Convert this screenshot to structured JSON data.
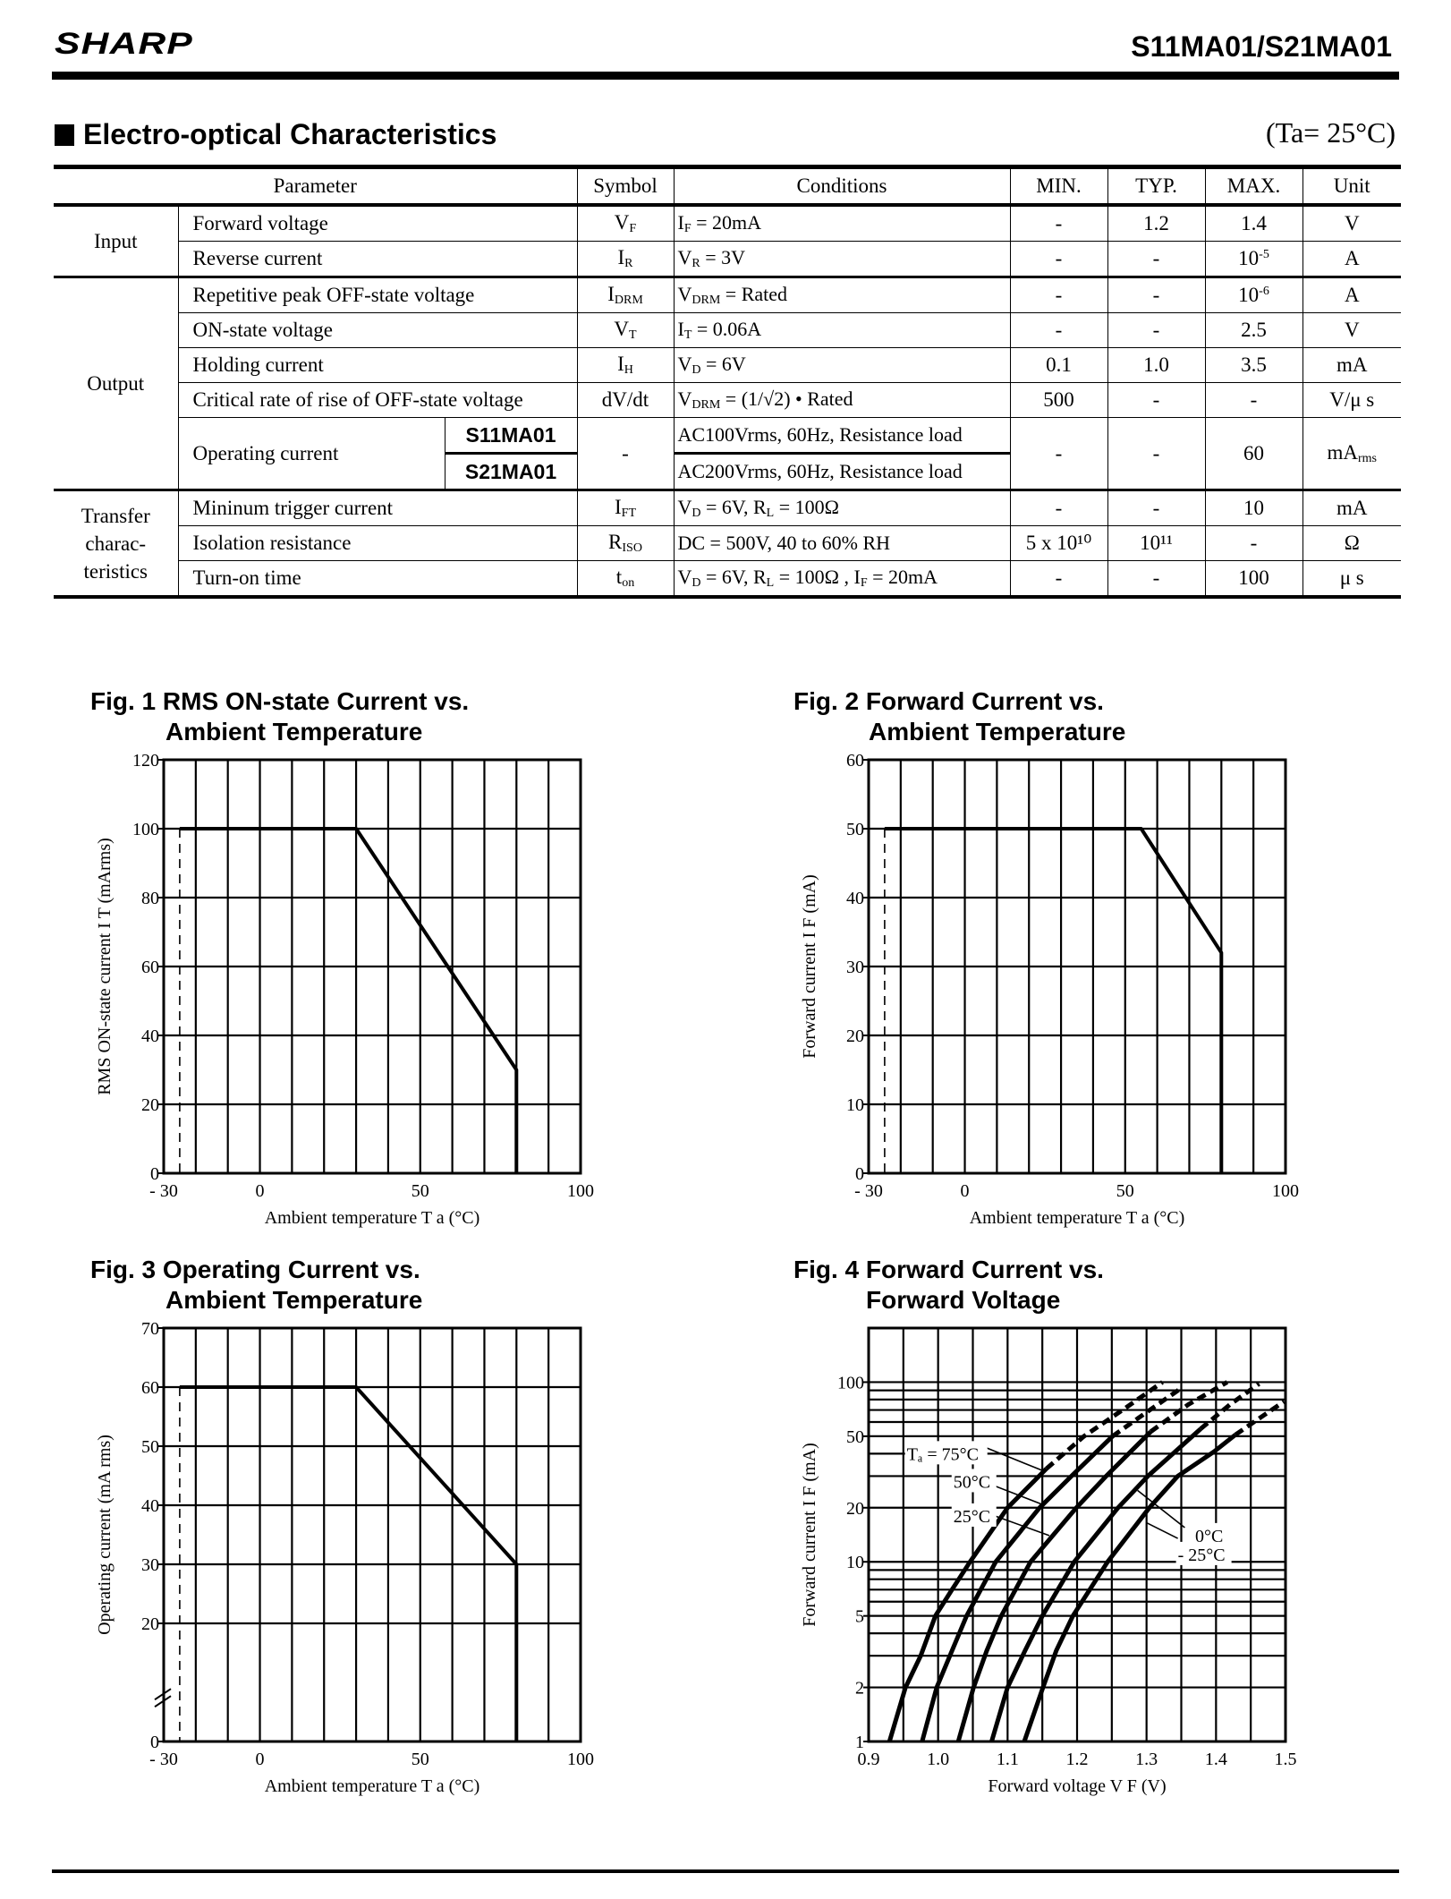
{
  "header": {
    "logo": "SHARP",
    "title": "S11MA01/S21MA01"
  },
  "section": {
    "title": "Electro-optical Characteristics",
    "condition": "(Ta= 25°C)"
  },
  "table": {
    "headers": [
      "Parameter",
      "Symbol",
      "Conditions",
      "MIN.",
      "TYP.",
      "MAX.",
      "Unit"
    ],
    "groups": [
      {
        "label": "Input",
        "rows": [
          {
            "param": "Forward voltage",
            "symbol": [
              {
                "t": "V"
              },
              {
                "sub": "F"
              }
            ],
            "conditions": [
              {
                "t": "I"
              },
              {
                "sub": "F"
              },
              {
                "t": " = 20mA"
              }
            ],
            "min": "-",
            "typ": "1.2",
            "max": [
              {
                "t": "1.4"
              }
            ],
            "unit": [
              {
                "t": "V"
              }
            ]
          },
          {
            "param": "Reverse current",
            "symbol": [
              {
                "t": "I"
              },
              {
                "sub": "R"
              }
            ],
            "conditions": [
              {
                "t": "V"
              },
              {
                "sub": "R"
              },
              {
                "t": " = 3V"
              }
            ],
            "min": "-",
            "typ": "-",
            "max": [
              {
                "t": "10"
              },
              {
                "sup": "-5"
              }
            ],
            "unit": [
              {
                "t": "A"
              }
            ]
          }
        ]
      },
      {
        "label": "Output",
        "rows": [
          {
            "param": "Repetitive peak OFF-state voltage",
            "symbol": [
              {
                "t": "I"
              },
              {
                "sub": "DRM"
              }
            ],
            "conditions": [
              {
                "t": "V"
              },
              {
                "sub": "DRM"
              },
              {
                "t": " = Rated"
              }
            ],
            "min": "-",
            "typ": "-",
            "max": [
              {
                "t": "10"
              },
              {
                "sup": "-6"
              }
            ],
            "unit": [
              {
                "t": "A"
              }
            ]
          },
          {
            "param": "ON-state voltage",
            "symbol": [
              {
                "t": "V"
              },
              {
                "sub": "T"
              }
            ],
            "conditions": [
              {
                "t": "I"
              },
              {
                "sub": "T"
              },
              {
                "t": " = 0.06A"
              }
            ],
            "min": "-",
            "typ": "-",
            "max": [
              {
                "t": "2.5"
              }
            ],
            "unit": [
              {
                "t": "V"
              }
            ]
          },
          {
            "param": "Holding current",
            "symbol": [
              {
                "t": "I"
              },
              {
                "sub": "H"
              }
            ],
            "conditions": [
              {
                "t": "V"
              },
              {
                "sub": "D"
              },
              {
                "t": " = 6V"
              }
            ],
            "min": "0.1",
            "typ": "1.0",
            "max": [
              {
                "t": "3.5"
              }
            ],
            "unit": [
              {
                "t": "mA"
              }
            ]
          },
          {
            "param": "Critical rate of rise of OFF-state voltage",
            "symbol": [
              {
                "t": "dV/dt"
              }
            ],
            "conditions": [
              {
                "t": "V"
              },
              {
                "sub": "DRM"
              },
              {
                "t": " = (1/√2) • Rated"
              }
            ],
            "min": "500",
            "typ": "-",
            "max": [
              {
                "t": "-"
              }
            ],
            "unit": [
              {
                "t": "V/μ s"
              }
            ]
          },
          {
            "param": "Operating current",
            "models": [
              "S11MA01",
              "S21MA01"
            ],
            "symbol": [
              {
                "t": "-"
              }
            ],
            "conditions_list": [
              "AC100Vrms, 60Hz, Resistance load",
              "AC200Vrms, 60Hz, Resistance load"
            ],
            "min": "-",
            "typ": "-",
            "max": [
              {
                "t": "60"
              }
            ],
            "unit": [
              {
                "t": "mA"
              },
              {
                "sub": "rms"
              }
            ]
          }
        ]
      },
      {
        "label": "Transfer charac- teristics",
        "rows": [
          {
            "param": "Mininum trigger current",
            "symbol": [
              {
                "t": "I"
              },
              {
                "sub": "FT"
              }
            ],
            "conditions": [
              {
                "t": "V"
              },
              {
                "sub": "D"
              },
              {
                "t": " = 6V, R"
              },
              {
                "sub": "L"
              },
              {
                "t": " = 100Ω"
              }
            ],
            "min": "-",
            "typ": "-",
            "max": [
              {
                "t": "10"
              }
            ],
            "unit": [
              {
                "t": "mA"
              }
            ]
          },
          {
            "param": "Isolation resistance",
            "symbol": [
              {
                "t": "R"
              },
              {
                "sub": "ISO"
              }
            ],
            "conditions": [
              {
                "t": "DC = 500V, 40 to 60% RH"
              }
            ],
            "min": "5 x 10¹⁰",
            "typ": "10¹¹",
            "max": [
              {
                "t": "-"
              }
            ],
            "unit": [
              {
                "t": "Ω"
              }
            ]
          },
          {
            "param": "Turn-on time",
            "symbol": [
              {
                "t": "t"
              },
              {
                "sub": "on"
              }
            ],
            "conditions": [
              {
                "t": "V"
              },
              {
                "sub": "D"
              },
              {
                "t": " = 6V, R"
              },
              {
                "sub": "L"
              },
              {
                "t": " = 100Ω , I"
              },
              {
                "sub": "F"
              },
              {
                "t": " = 20mA"
              }
            ],
            "min": "-",
            "typ": "-",
            "max": [
              {
                "t": "100"
              }
            ],
            "unit": [
              {
                "t": "μ s"
              }
            ]
          }
        ]
      }
    ]
  },
  "chart_data": [
    {
      "id": "fig1",
      "type": "line",
      "title": [
        "Fig. 1 RMS ON-state Current vs.",
        "Ambient Temperature"
      ],
      "xlabel": "Ambient temperature T a (°C)",
      "ylabel": "RMS ON-state current I T (mArms)",
      "xlim": [
        -30,
        100
      ],
      "ylim": [
        0,
        120
      ],
      "scale": "linear",
      "grid": true,
      "xticks": [
        -30,
        0,
        50,
        100
      ],
      "xtick_labels": [
        "- 30",
        "0",
        "50",
        "100"
      ],
      "yticks": [
        0,
        20,
        40,
        60,
        80,
        100,
        120
      ],
      "ytick_labels": [
        "0",
        "20",
        "40",
        "60",
        "80",
        "100",
        "120"
      ],
      "series": [
        {
          "solid": [
            [
              -25,
              100
            ],
            [
              30,
              100
            ],
            [
              80,
              30
            ],
            [
              80,
              0
            ]
          ],
          "dashed_vertical": [
            [
              -25,
              100
            ],
            [
              -25,
              0
            ]
          ]
        }
      ]
    },
    {
      "id": "fig2",
      "type": "line",
      "title": [
        "Fig. 2 Forward Current vs.",
        "Ambient Temperature"
      ],
      "xlabel": "Ambient temperature T a (°C)",
      "ylabel": "Forward current I F (mA)",
      "xlim": [
        -30,
        100
      ],
      "ylim": [
        0,
        60
      ],
      "scale": "linear",
      "grid": true,
      "xticks": [
        -30,
        0,
        50,
        100
      ],
      "xtick_labels": [
        "- 30",
        "0",
        "50",
        "100"
      ],
      "yticks": [
        0,
        10,
        20,
        30,
        40,
        50,
        60
      ],
      "ytick_labels": [
        "0",
        "10",
        "20",
        "30",
        "40",
        "50",
        "60"
      ],
      "series": [
        {
          "solid": [
            [
              -25,
              50
            ],
            [
              55,
              50
            ],
            [
              80,
              32
            ],
            [
              80,
              0
            ]
          ],
          "dashed_vertical": [
            [
              -25,
              50
            ],
            [
              -25,
              0
            ]
          ]
        }
      ]
    },
    {
      "id": "fig3",
      "type": "line",
      "title": [
        "Fig. 3 Operating Current vs.",
        "Ambient Temperature"
      ],
      "xlabel": "Ambient temperature T a (°C)",
      "ylabel": "Operating current (mA rms)",
      "xlim": [
        -30,
        100
      ],
      "ylim": [
        0,
        70
      ],
      "scale": "linear",
      "grid": true,
      "axis_break": true,
      "xticks": [
        -30,
        0,
        50,
        100
      ],
      "xtick_labels": [
        "- 30",
        "0",
        "50",
        "100"
      ],
      "yticks": [
        0,
        20,
        30,
        40,
        50,
        60,
        70
      ],
      "ytick_labels": [
        "0",
        "20",
        "30",
        "40",
        "50",
        "60",
        "70"
      ],
      "series": [
        {
          "solid": [
            [
              -25,
              60
            ],
            [
              30,
              60
            ],
            [
              80,
              30
            ],
            [
              80,
              0
            ]
          ],
          "dashed_vertical": [
            [
              -25,
              60
            ],
            [
              -25,
              0
            ]
          ]
        }
      ]
    },
    {
      "id": "fig4",
      "type": "line",
      "title": [
        "Fig. 4 Forward Current vs.",
        "Forward Voltage"
      ],
      "xlabel": "Forward voltage V F (V)",
      "ylabel": "Forward current I F (mA)",
      "xlim": [
        0.9,
        1.5
      ],
      "ylim": [
        1,
        200
      ],
      "scale": "log-y",
      "grid": true,
      "xticks": [
        0.9,
        1.0,
        1.1,
        1.2,
        1.3,
        1.4,
        1.5
      ],
      "xtick_labels": [
        "0.9",
        "1.0",
        "1.1",
        "1.2",
        "1.3",
        "1.4",
        "1.5"
      ],
      "yticks": [
        1,
        2,
        5,
        10,
        20,
        50,
        100
      ],
      "ytick_labels": [
        "1",
        "2",
        "5",
        "10",
        "20",
        "50",
        "100"
      ],
      "series": [
        {
          "name": "Tₐ = 75°C",
          "solid": [
            [
              0.93,
              1
            ],
            [
              0.953,
              2
            ],
            [
              0.975,
              3
            ],
            [
              0.996,
              5
            ],
            [
              1.02,
              7
            ],
            [
              1.046,
              10
            ],
            [
              1.1,
              20
            ],
            [
              1.156,
              33
            ]
          ],
          "dashed": [
            [
              1.156,
              33
            ],
            [
              1.21,
              50
            ],
            [
              1.27,
              72
            ],
            [
              1.323,
              100
            ]
          ]
        },
        {
          "name": "50°C",
          "solid": [
            [
              0.977,
              1
            ],
            [
              0.998,
              2
            ],
            [
              1.02,
              3.2
            ],
            [
              1.041,
              5
            ],
            [
              1.083,
              10
            ],
            [
              1.146,
              20
            ],
            [
              1.192,
              30
            ],
            [
              1.251,
              50
            ]
          ],
          "dashed": [
            [
              1.251,
              50
            ],
            [
              1.3,
              68
            ],
            [
              1.347,
              91
            ]
          ]
        },
        {
          "name": "25°C",
          "solid": [
            [
              1.029,
              1
            ],
            [
              1.051,
              2
            ],
            [
              1.07,
              3.2
            ],
            [
              1.091,
              5
            ],
            [
              1.133,
              10
            ],
            [
              1.199,
              20
            ],
            [
              1.242,
              30
            ],
            [
              1.306,
              53
            ]
          ],
          "dashed": [
            [
              1.306,
              53
            ],
            [
              1.36,
              75
            ],
            [
              1.416,
              100
            ]
          ]
        },
        {
          "name": "0°C",
          "solid": [
            [
              1.077,
              1
            ],
            [
              1.1,
              2
            ],
            [
              1.125,
              3.2
            ],
            [
              1.15,
              5
            ],
            [
              1.196,
              10
            ],
            [
              1.259,
              20
            ],
            [
              1.302,
              30
            ],
            [
              1.378,
              55
            ]
          ],
          "dashed": [
            [
              1.378,
              55
            ],
            [
              1.42,
              75
            ],
            [
              1.462,
              98
            ]
          ]
        },
        {
          "name": "- 25°C",
          "solid": [
            [
              1.124,
              1
            ],
            [
              1.151,
              2
            ],
            [
              1.17,
              3.2
            ],
            [
              1.194,
              5
            ],
            [
              1.244,
              10
            ],
            [
              1.304,
              20
            ],
            [
              1.345,
              30
            ],
            [
              1.397,
              41
            ],
            [
              1.428,
              51
            ]
          ],
          "dashed": [
            [
              1.428,
              51
            ],
            [
              1.46,
              62
            ],
            [
              1.498,
              78
            ]
          ]
        }
      ]
    }
  ]
}
